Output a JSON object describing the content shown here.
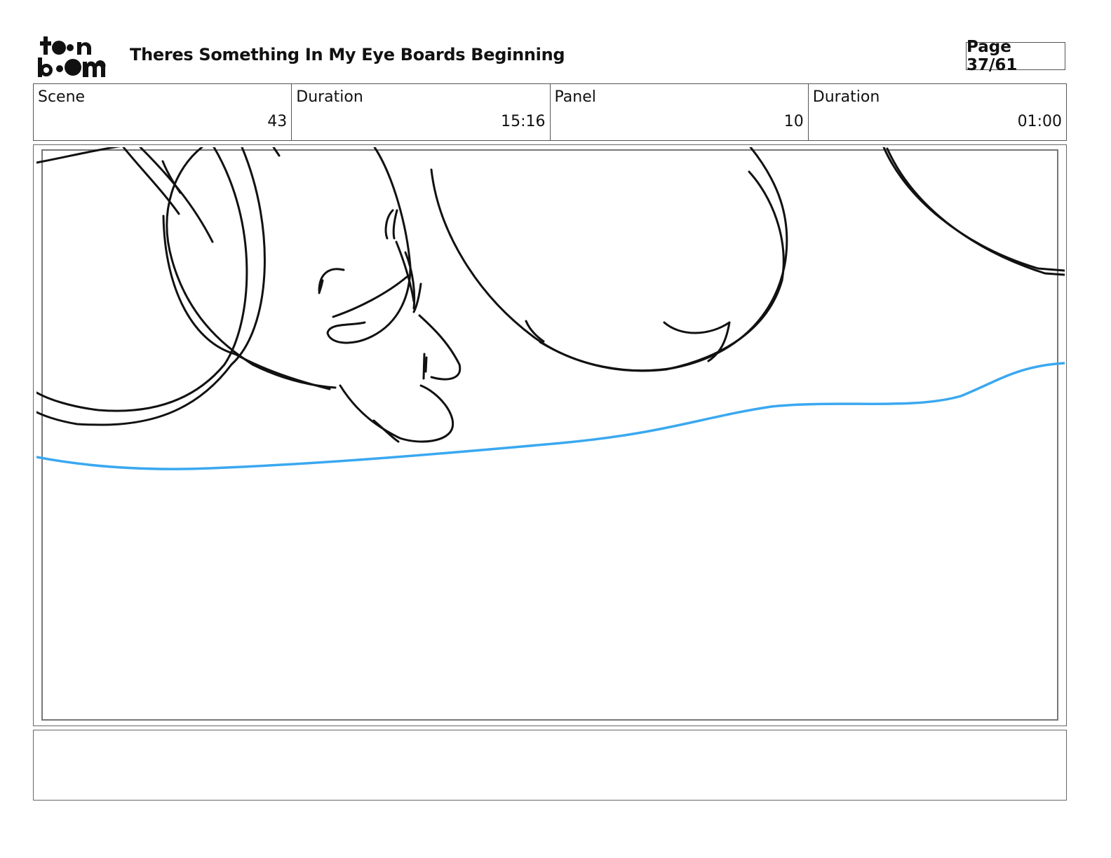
{
  "header": {
    "logo_text": "toon boom",
    "title": "Theres Something In My Eye Boards Beginning",
    "page_label": "Page 37/61"
  },
  "info": {
    "scene_label": "Scene",
    "scene_value": "43",
    "scene_duration_label": "Duration",
    "scene_duration_value": "15:16",
    "panel_label": "Panel",
    "panel_value": "10",
    "panel_duration_label": "Duration",
    "panel_duration_value": "01:00"
  },
  "panel": {
    "sketch_line_color": "#111111",
    "guide_line_color": "#3aa8f0"
  },
  "caption": {
    "text": ""
  }
}
